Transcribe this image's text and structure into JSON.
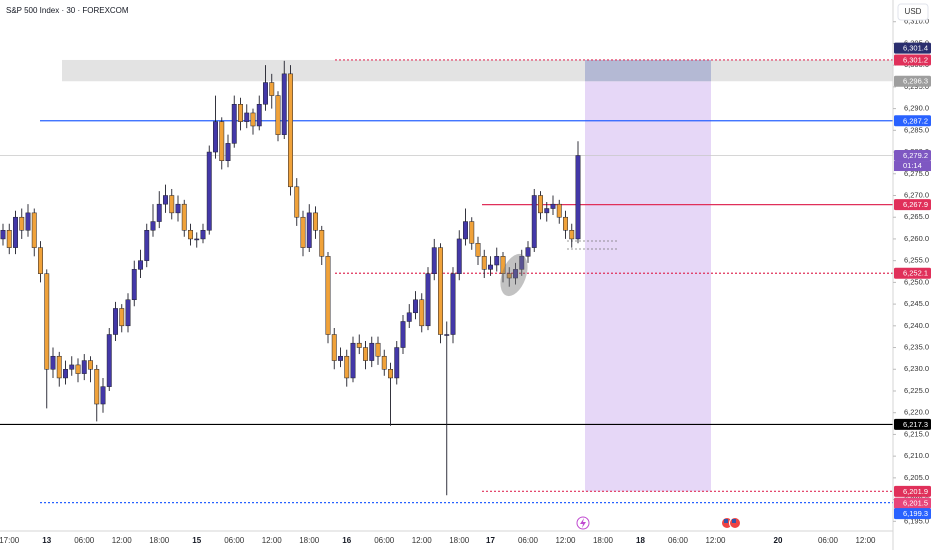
{
  "header": {
    "symbol": "S&P 500 Index · 30 · FOREXCOM",
    "currency": "USD"
  },
  "chart_data": {
    "type": "candlestick",
    "categories": [
      null,
      "17:00",
      null,
      null,
      null,
      null,
      null,
      "13",
      null,
      null,
      null,
      null,
      null,
      "06:00",
      null,
      null,
      null,
      null,
      null,
      "12:00",
      null,
      null,
      null,
      null,
      null,
      "18:00",
      null,
      null,
      null,
      null,
      null,
      "15",
      null,
      null,
      null,
      null,
      null,
      "06:00",
      null,
      null,
      null,
      null,
      null,
      "12:00",
      null,
      null,
      null,
      null,
      null,
      "18:00",
      null,
      null,
      null,
      null,
      null,
      "16",
      null,
      null,
      null,
      null,
      null,
      "06:00",
      null,
      null,
      null,
      null,
      null,
      "12:00",
      null,
      null,
      null,
      null,
      null,
      "18:00",
      null,
      null,
      null,
      null,
      "17",
      null,
      null,
      null,
      null,
      null,
      "06:00",
      null,
      null,
      null,
      null,
      null,
      "12:00",
      null,
      null,
      null,
      null,
      null,
      "18:00",
      null,
      null,
      null,
      null,
      null,
      "18",
      null,
      null,
      null,
      null,
      null,
      "06:00",
      null,
      null,
      null,
      null,
      null,
      "12:00",
      null,
      null,
      null,
      null,
      null,
      null,
      null,
      null,
      null,
      "20",
      null,
      null,
      null,
      null,
      null,
      null,
      null,
      "06:00",
      null,
      null,
      null,
      null,
      null,
      "12:00",
      null,
      null,
      null
    ],
    "open": [
      6260,
      6262,
      6258,
      6265,
      6262,
      6266,
      6258,
      6252,
      6230,
      6233,
      6228,
      6230,
      6231,
      6229,
      6232,
      6230,
      6222,
      6226,
      6238,
      6244,
      6240,
      6246,
      6253,
      6255,
      6262,
      6264,
      6268,
      6270,
      6266,
      6268,
      6262,
      6260,
      6260,
      6262,
      6280,
      6287,
      6278,
      6282,
      6291,
      6287,
      6289,
      6286,
      6291,
      6296,
      6293,
      6284,
      6298,
      6272,
      6265,
      6258,
      6266,
      6262,
      6256,
      6238,
      6232,
      6233,
      6228,
      6236,
      6235,
      6232,
      6236,
      6233,
      6230,
      6228,
      6235,
      6241,
      6243,
      6246,
      6240,
      6252,
      6258,
      6238,
      6238,
      6252,
      6260,
      6264,
      6259,
      6256,
      6253,
      6254,
      6256,
      6252,
      6251,
      6253,
      6256,
      6258,
      6270,
      6266,
      6267,
      6268,
      6265,
      6262,
      6260,
      null,
      null,
      null,
      null,
      null,
      null,
      null,
      null,
      null,
      null,
      null,
      null,
      null,
      null,
      null,
      null,
      null,
      null,
      null,
      null,
      null,
      null,
      null,
      null,
      null,
      null,
      null,
      null,
      null,
      null,
      null,
      null,
      null,
      null,
      null,
      null,
      null,
      null,
      null,
      null,
      null,
      null,
      null,
      null,
      null,
      null,
      null,
      null,
      null
    ],
    "high": [
      6263.5,
      6263.5,
      6266.5,
      6267,
      6268,
      6267,
      6259.5,
      6253,
      6235,
      6234,
      6232,
      6233,
      6232.5,
      6233.5,
      6233,
      6231,
      6228,
      6239.5,
      6245.5,
      6245,
      6247.5,
      6255,
      6257.5,
      6263.5,
      6268,
      6271,
      6272.5,
      6271.5,
      6270,
      6269,
      6263.5,
      6261.5,
      6263.5,
      6281.5,
      6293,
      6288,
      6284,
      6293,
      6292.5,
      6291,
      6290,
      6293,
      6300,
      6298,
      6294,
      6301,
      6300,
      6274,
      6266.5,
      6268,
      6267.5,
      6263,
      6257,
      6239.5,
      6235,
      6234.5,
      6237.5,
      6238,
      6236.5,
      6237.5,
      6237.5,
      6234.5,
      6231.5,
      6236.5,
      6242.5,
      6245,
      6248,
      6247.5,
      6253.5,
      6260,
      6259,
      6241,
      6253.5,
      6262,
      6267,
      6265,
      6260.5,
      6257.5,
      6256,
      6258,
      6257,
      6253.5,
      6254.5,
      6257.5,
      6259.5,
      6271.5,
      6271,
      6268.5,
      6270,
      6269,
      6266.5,
      6263.5,
      6282.5,
      null,
      null,
      null,
      null,
      null,
      null,
      null,
      null,
      null,
      null,
      null,
      null,
      null,
      null,
      null,
      null,
      null,
      null,
      null,
      null,
      null,
      null,
      null,
      null,
      null,
      null,
      null,
      null,
      null,
      null,
      null,
      null,
      null,
      null,
      null,
      null,
      null,
      null,
      null,
      null,
      null,
      null,
      null,
      null,
      null,
      null,
      null,
      null,
      null
    ],
    "low": [
      6258.5,
      6256.5,
      6256.5,
      6260,
      6260.5,
      6256,
      6250,
      6221,
      6228,
      6226,
      6226.5,
      6228.5,
      6227,
      6227.5,
      6227,
      6218,
      6220,
      6225,
      6236.5,
      6238.5,
      6238.5,
      6244.5,
      6251,
      6253.5,
      6260.5,
      6262.5,
      6266,
      6264.5,
      6264,
      6260.5,
      6258.5,
      6258,
      6259,
      6261,
      6278.5,
      6276,
      6276.5,
      6281,
      6285,
      6285.5,
      6284,
      6285,
      6289.5,
      6290,
      6282.5,
      6283,
      6270,
      6263,
      6256,
      6257,
      6260,
      6254,
      6236,
      6230,
      6230.5,
      6226,
      6227,
      6233.5,
      6230,
      6230.5,
      6231,
      6228.5,
      6217,
      6226.5,
      6233.5,
      6239.5,
      6241.5,
      6238.5,
      6239,
      6250.5,
      6236,
      6201,
      6236,
      6250.5,
      6258.5,
      6257.5,
      6254,
      6251,
      6251.5,
      6252.5,
      6250,
      6249,
      6249.5,
      6251.5,
      6254.5,
      6257,
      6264.5,
      6264,
      6265.5,
      6263.5,
      6260,
      6258,
      6259,
      null,
      null,
      null,
      null,
      null,
      null,
      null,
      null,
      null,
      null,
      null,
      null,
      null,
      null,
      null,
      null,
      null,
      null,
      null,
      null,
      null,
      null,
      null,
      null,
      null,
      null,
      null,
      null,
      null,
      null,
      null,
      null,
      null,
      null,
      null,
      null,
      null,
      null,
      null,
      null,
      null,
      null,
      null,
      null,
      null,
      null,
      null,
      null,
      null
    ],
    "close": [
      6262,
      6258,
      6265,
      6262,
      6266,
      6258,
      6252,
      6230,
      6233,
      6228,
      6230,
      6231,
      6229,
      6232,
      6230,
      6222,
      6226,
      6238,
      6244,
      6240,
      6246,
      6253,
      6255,
      6262,
      6264,
      6268,
      6270,
      6266,
      6268,
      6262,
      6260,
      6260,
      6262,
      6280,
      6287,
      6278,
      6282,
      6291,
      6287,
      6289,
      6286,
      6291,
      6296,
      6293,
      6284,
      6298,
      6272,
      6265,
      6258,
      6266,
      6262,
      6256,
      6238,
      6232,
      6233,
      6228,
      6236,
      6235,
      6232,
      6236,
      6233,
      6230,
      6228,
      6235,
      6241,
      6243,
      6246,
      6240,
      6252,
      6258,
      6238,
      6238,
      6252,
      6260,
      6264,
      6259,
      6256,
      6253,
      6254,
      6256,
      6252,
      6251,
      6253,
      6256,
      6258,
      6270,
      6266,
      6267,
      6268,
      6265,
      6262,
      6260,
      6279.2,
      null,
      null,
      null,
      null,
      null,
      null,
      null,
      null,
      null,
      null,
      null,
      null,
      null,
      null,
      null,
      null,
      null,
      null,
      null,
      null,
      null,
      null,
      null,
      null,
      null,
      null,
      null,
      null,
      null,
      null,
      null,
      null,
      null,
      null,
      null,
      null,
      null,
      null,
      null,
      null,
      null,
      null,
      null,
      null,
      null,
      null,
      null,
      null,
      null
    ],
    "up_color": "#4338a8",
    "down_color": "#f0a23a",
    "wick_color": "#1e1e2a",
    "ylim": [
      6193,
      6315
    ],
    "yticks": [
      {
        "value": 6195,
        "label": "6,195.0"
      },
      {
        "value": 6200,
        "label": "6,200.0"
      },
      {
        "value": 6205,
        "label": "6,205.0"
      },
      {
        "value": 6210,
        "label": "6,210.0"
      },
      {
        "value": 6215,
        "label": "6,215.0"
      },
      {
        "value": 6220,
        "label": "6,220.0"
      },
      {
        "value": 6225,
        "label": "6,225.0"
      },
      {
        "value": 6230,
        "label": "6,230.0"
      },
      {
        "value": 6235,
        "label": "6,235.0"
      },
      {
        "value": 6240,
        "label": "6,240.0"
      },
      {
        "value": 6245,
        "label": "6,245.0"
      },
      {
        "value": 6250,
        "label": "6,250.0"
      },
      {
        "value": 6255,
        "label": "6,255.0"
      },
      {
        "value": 6260,
        "label": "6,260.0"
      },
      {
        "value": 6265,
        "label": "6,265.0"
      },
      {
        "value": 6270,
        "label": "6,270.0"
      },
      {
        "value": 6275,
        "label": "6,275.0"
      },
      {
        "value": 6280,
        "label": "6,280.0"
      },
      {
        "value": 6285,
        "label": "6,285.0"
      },
      {
        "value": 6290,
        "label": "6,290.0"
      },
      {
        "value": 6295,
        "label": "6,295.0"
      },
      {
        "value": 6300,
        "label": "6,300.0"
      },
      {
        "value": 6305,
        "label": "6,305.0"
      },
      {
        "value": 6310,
        "label": "6,310.0"
      }
    ],
    "levels": [
      {
        "value": 6301.4,
        "label": "6,301.4",
        "color": "#2a2e6e",
        "style": "none"
      },
      {
        "value": 6301.2,
        "label": "6,301.2",
        "color": "#e0305a",
        "style": "dotted"
      },
      {
        "value": 6296.3,
        "label": "6,296.3",
        "color": "#9e9e9e",
        "style": "none"
      },
      {
        "value": 6287.2,
        "label": "6,287.2",
        "color": "#2962ff",
        "style": "solid"
      },
      {
        "value": 6279.2,
        "label": "6,279.2",
        "color": "#7e57c2",
        "style": "thin"
      },
      {
        "value": 6267.9,
        "label": "6,267.9",
        "color": "#e0305a",
        "style": "solid"
      },
      {
        "value": 6252.1,
        "label": "6,252.1",
        "color": "#e0305a",
        "style": "dotted"
      },
      {
        "value": 6217.3,
        "label": "6,217.3",
        "color": "#000000",
        "style": "solid"
      },
      {
        "value": 6201.9,
        "label": "6,201.9",
        "color": "#e0305a",
        "style": "dotted"
      },
      {
        "value": 6201.5,
        "label": "6,201.5",
        "color": "#e8457a",
        "style": "none"
      },
      {
        "value": 6199.3,
        "label": "6,199.3",
        "color": "#2962ff",
        "style": "dotted"
      }
    ],
    "countdown": "01:14"
  }
}
